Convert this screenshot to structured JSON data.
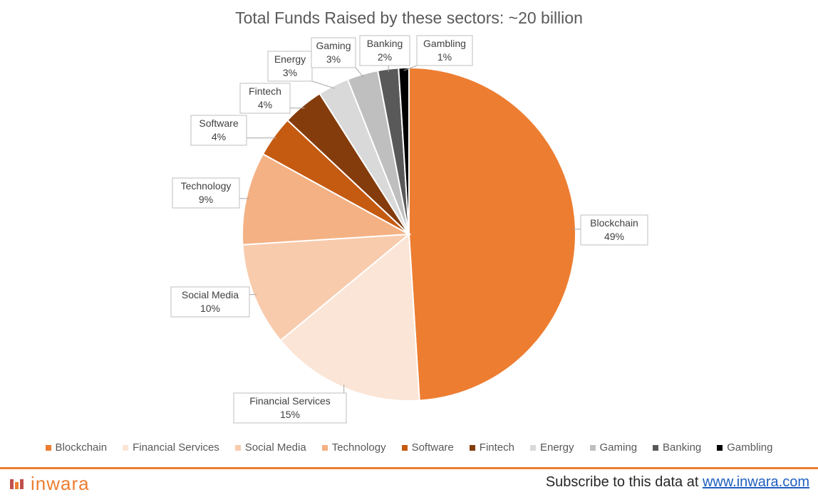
{
  "chart_data": {
    "type": "pie",
    "title": "Total Funds Raised by these sectors: ~20 billion",
    "slices": [
      {
        "label": "Blockchain",
        "value": 49,
        "display": "49%",
        "color": "#ed7d31"
      },
      {
        "label": "Financial Services",
        "value": 15,
        "display": "15%",
        "color": "#fbe5d6"
      },
      {
        "label": "Social Media",
        "value": 10,
        "display": "10%",
        "color": "#f8cbad"
      },
      {
        "label": "Technology",
        "value": 9,
        "display": "9%",
        "color": "#f4b183"
      },
      {
        "label": "Software",
        "value": 4,
        "display": "4%",
        "color": "#c55a11"
      },
      {
        "label": "Fintech",
        "value": 4,
        "display": "4%",
        "color": "#843c0c"
      },
      {
        "label": "Energy",
        "value": 3,
        "display": "3%",
        "color": "#d9d9d9"
      },
      {
        "label": "Gaming",
        "value": 3,
        "display": "3%",
        "color": "#bfbfbf"
      },
      {
        "label": "Banking",
        "value": 2,
        "display": "2%",
        "color": "#595959"
      },
      {
        "label": "Gambling",
        "value": 1,
        "display": "1%",
        "color": "#000000"
      }
    ],
    "legend": "bottom"
  },
  "footer": {
    "brand": "inwara",
    "subscribe_text": "Subscribe to this data at ",
    "subscribe_link": "www.inwara.com"
  }
}
